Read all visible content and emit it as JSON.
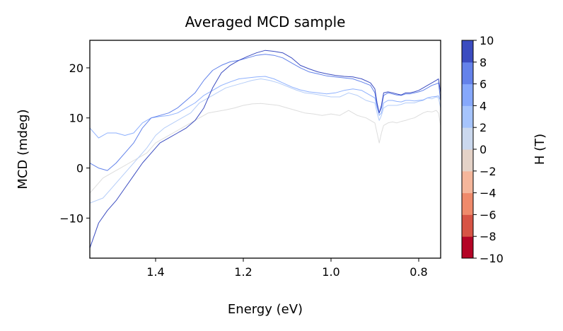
{
  "chart_data": {
    "type": "line",
    "title": "Averaged MCD sample",
    "xlabel": "Energy (eV)",
    "ylabel": "MCD (mdeg)",
    "xlim": [
      1.55,
      0.75
    ],
    "ylim": [
      -18,
      25.5
    ],
    "x_reversed": true,
    "grid": false,
    "xticks": [
      1.4,
      1.2,
      1.0,
      0.8
    ],
    "xtick_labels": [
      "1.4",
      "1.2",
      "1.0",
      "0.8"
    ],
    "yticks": [
      20,
      10,
      0,
      -10
    ],
    "ytick_labels": [
      "20",
      "10",
      "0",
      "−10"
    ],
    "colorbar": {
      "label": "H (T)",
      "colormap": "coolwarm",
      "min": -10,
      "max": 10,
      "bounds": [
        -10,
        -8,
        -6,
        -4,
        -2,
        0,
        2,
        4,
        6,
        8,
        10
      ],
      "colors": [
        "#b40426",
        "#d75445",
        "#ef8a6b",
        "#f5b69b",
        "#e4d2c7",
        "#cbd8ee",
        "#a6c4fd",
        "#86a8fc",
        "#6482ea",
        "#3b4cc0"
      ],
      "ticks": [
        10,
        8,
        6,
        4,
        2,
        0,
        -2,
        -4,
        -6,
        -8,
        -10
      ],
      "tick_labels": [
        "10",
        "8",
        "6",
        "4",
        "2",
        "0",
        "−2",
        "−4",
        "−6",
        "−8",
        "−10"
      ]
    },
    "series": [
      {
        "field_T": 2,
        "color": "#dddddd",
        "x": [
          1.55,
          1.52,
          1.5,
          1.48,
          1.46,
          1.44,
          1.42,
          1.4,
          1.38,
          1.36,
          1.34,
          1.32,
          1.3,
          1.28,
          1.26,
          1.24,
          1.22,
          1.2,
          1.18,
          1.16,
          1.14,
          1.12,
          1.1,
          1.08,
          1.06,
          1.04,
          1.02,
          1.0,
          0.98,
          0.96,
          0.94,
          0.92,
          0.9,
          0.895,
          0.89,
          0.885,
          0.88,
          0.87,
          0.86,
          0.85,
          0.84,
          0.83,
          0.82,
          0.81,
          0.8,
          0.79,
          0.78,
          0.77,
          0.76,
          0.755,
          0.75
        ],
        "y": [
          -5,
          -2,
          -1,
          0,
          1,
          2,
          3,
          5,
          6,
          7,
          8,
          9,
          10,
          11,
          11.3,
          11.6,
          12,
          12.5,
          12.8,
          12.9,
          12.7,
          12.5,
          12,
          11.5,
          11,
          10.8,
          10.5,
          10.8,
          10.5,
          11.5,
          10.5,
          10,
          9,
          7,
          5,
          7,
          8.5,
          9,
          9.2,
          9,
          9.3,
          9.5,
          9.8,
          10,
          10.5,
          11,
          11.3,
          11.2,
          11.5,
          11,
          8.5
        ]
      },
      {
        "field_T": 4,
        "color": "#b5cdf8",
        "x": [
          1.55,
          1.52,
          1.5,
          1.48,
          1.46,
          1.44,
          1.42,
          1.4,
          1.38,
          1.36,
          1.34,
          1.32,
          1.3,
          1.28,
          1.26,
          1.24,
          1.22,
          1.2,
          1.18,
          1.16,
          1.14,
          1.12,
          1.1,
          1.08,
          1.06,
          1.04,
          1.02,
          1.0,
          0.98,
          0.96,
          0.94,
          0.92,
          0.9,
          0.895,
          0.89,
          0.885,
          0.88,
          0.87,
          0.86,
          0.85,
          0.84,
          0.83,
          0.82,
          0.81,
          0.8,
          0.79,
          0.78,
          0.77,
          0.76,
          0.755,
          0.75
        ],
        "y": [
          -7,
          -6,
          -4,
          -2,
          0,
          2,
          4,
          6.5,
          8,
          9,
          10,
          11,
          13,
          14,
          15,
          16,
          16.5,
          17,
          17.5,
          17.8,
          17.5,
          17,
          16.3,
          15.6,
          15,
          14.8,
          14.5,
          14.2,
          14.2,
          15,
          14.5,
          13.5,
          13,
          11,
          9.5,
          10.5,
          12,
          12.5,
          12.5,
          12.5,
          12.7,
          13,
          13,
          13,
          13.3,
          13.5,
          14,
          13.8,
          14.2,
          14,
          12
        ]
      },
      {
        "field_T": 6,
        "color": "#8fb1fe",
        "x": [
          1.55,
          1.53,
          1.51,
          1.49,
          1.47,
          1.45,
          1.43,
          1.41,
          1.39,
          1.37,
          1.35,
          1.33,
          1.31,
          1.29,
          1.27,
          1.25,
          1.23,
          1.21,
          1.19,
          1.17,
          1.15,
          1.13,
          1.11,
          1.09,
          1.07,
          1.05,
          1.03,
          1.01,
          0.99,
          0.97,
          0.95,
          0.93,
          0.91,
          0.9,
          0.895,
          0.89,
          0.885,
          0.88,
          0.87,
          0.86,
          0.85,
          0.84,
          0.83,
          0.82,
          0.81,
          0.8,
          0.79,
          0.78,
          0.77,
          0.76,
          0.755,
          0.75
        ],
        "y": [
          8,
          6,
          7,
          7,
          6.5,
          7,
          9,
          10,
          10.3,
          10.5,
          11,
          12,
          13,
          14.5,
          15.5,
          16.5,
          17.2,
          17.8,
          18,
          18.2,
          18.3,
          17.8,
          17,
          16.2,
          15.6,
          15.2,
          15,
          14.8,
          15,
          15.5,
          15.8,
          15.5,
          14.5,
          14,
          12,
          10.5,
          11,
          13,
          13.5,
          13.5,
          13.3,
          13.2,
          13.5,
          13.5,
          13.4,
          13.5,
          13.6,
          14,
          14.2,
          14.3,
          14.4,
          13.5
        ]
      },
      {
        "field_T": 8,
        "color": "#6282ea",
        "x": [
          1.55,
          1.53,
          1.51,
          1.49,
          1.47,
          1.45,
          1.43,
          1.41,
          1.39,
          1.37,
          1.35,
          1.33,
          1.31,
          1.29,
          1.27,
          1.25,
          1.23,
          1.21,
          1.19,
          1.17,
          1.15,
          1.13,
          1.11,
          1.09,
          1.07,
          1.05,
          1.03,
          1.01,
          0.99,
          0.97,
          0.95,
          0.93,
          0.91,
          0.9,
          0.895,
          0.89,
          0.885,
          0.88,
          0.87,
          0.86,
          0.85,
          0.84,
          0.83,
          0.82,
          0.81,
          0.8,
          0.79,
          0.78,
          0.77,
          0.76,
          0.755,
          0.75
        ],
        "y": [
          1,
          0,
          -0.5,
          1,
          3,
          5,
          8,
          10,
          10.5,
          11,
          12,
          13.5,
          15,
          17.5,
          19.5,
          20.5,
          21.2,
          21.5,
          22,
          22.5,
          22.7,
          22.5,
          22,
          21,
          20,
          19.2,
          18.8,
          18.4,
          18.2,
          18,
          17.8,
          17.2,
          16.5,
          15,
          12.5,
          11,
          12,
          14.5,
          15,
          14.8,
          14.6,
          14.5,
          14.8,
          14.8,
          15,
          15.2,
          15.5,
          16,
          16.5,
          16.8,
          17,
          13.5
        ]
      },
      {
        "field_T": 10,
        "color": "#3b4cc0",
        "x": [
          1.55,
          1.53,
          1.51,
          1.49,
          1.47,
          1.45,
          1.43,
          1.41,
          1.39,
          1.37,
          1.35,
          1.33,
          1.31,
          1.29,
          1.27,
          1.25,
          1.23,
          1.21,
          1.19,
          1.17,
          1.15,
          1.13,
          1.11,
          1.09,
          1.07,
          1.05,
          1.03,
          1.01,
          0.99,
          0.97,
          0.95,
          0.93,
          0.91,
          0.9,
          0.895,
          0.89,
          0.885,
          0.88,
          0.87,
          0.86,
          0.85,
          0.84,
          0.83,
          0.82,
          0.81,
          0.8,
          0.79,
          0.78,
          0.77,
          0.76,
          0.755,
          0.75
        ],
        "y": [
          -16,
          -11,
          -8.5,
          -6.5,
          -4,
          -1.5,
          1,
          3,
          5,
          6,
          7,
          8,
          9.5,
          12,
          16,
          19,
          20.5,
          21.5,
          22.3,
          23,
          23.5,
          23.3,
          23,
          22,
          20.5,
          19.8,
          19.2,
          18.8,
          18.5,
          18.3,
          18.2,
          17.8,
          17,
          15.8,
          13,
          11,
          12.5,
          15,
          15.2,
          15,
          14.8,
          14.6,
          15,
          15,
          15.2,
          15.5,
          16,
          16.5,
          17,
          17.5,
          17.8,
          15
        ]
      }
    ]
  }
}
